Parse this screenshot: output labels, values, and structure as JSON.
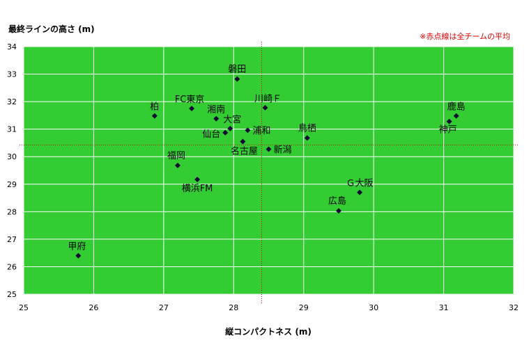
{
  "chart_data": {
    "type": "scatter",
    "xlabel": "縦コンパクトネス (m)",
    "ylabel": "最終ラインの高さ (m)",
    "note": "※赤点線は全チームの平均",
    "xlim": [
      25,
      32
    ],
    "ylim": [
      25,
      34
    ],
    "x_ticks": [
      "25",
      "26",
      "27",
      "28",
      "29",
      "30",
      "31",
      "32"
    ],
    "y_ticks": [
      "25",
      "26",
      "27",
      "28",
      "29",
      "30",
      "31",
      "32",
      "33",
      "34"
    ],
    "grid": true,
    "average": {
      "x": 28.4,
      "y": 30.43
    },
    "points": [
      {
        "label": "磐田",
        "x": 28.05,
        "y": 32.82
      },
      {
        "label": "FC東京",
        "x": 27.4,
        "y": 31.75
      },
      {
        "label": "川崎Ｆ",
        "x": 28.45,
        "y": 31.78
      },
      {
        "label": "柏",
        "x": 26.87,
        "y": 31.48
      },
      {
        "label": "湘南",
        "x": 27.75,
        "y": 31.38
      },
      {
        "label": "大宮",
        "x": 27.95,
        "y": 31.02
      },
      {
        "label": "仙台",
        "x": 27.88,
        "y": 30.87
      },
      {
        "label": "浦和",
        "x": 28.2,
        "y": 30.96
      },
      {
        "label": "鳥栖",
        "x": 29.05,
        "y": 30.68
      },
      {
        "label": "名古屋",
        "x": 28.13,
        "y": 30.55
      },
      {
        "label": "新潟",
        "x": 28.5,
        "y": 30.27
      },
      {
        "label": "鹿島",
        "x": 31.18,
        "y": 31.48
      },
      {
        "label": "神戸",
        "x": 31.08,
        "y": 31.28
      },
      {
        "label": "福岡",
        "x": 27.2,
        "y": 29.68
      },
      {
        "label": "横浜FM",
        "x": 27.48,
        "y": 29.17
      },
      {
        "label": "Ｇ大阪",
        "x": 29.8,
        "y": 28.7
      },
      {
        "label": "広島",
        "x": 29.5,
        "y": 28.03
      },
      {
        "label": "甲府",
        "x": 25.78,
        "y": 26.4
      }
    ]
  },
  "colors": {
    "plot_bg": "#33cc33",
    "grid": "#ffffff",
    "marker": "#0d0d33",
    "avg_line": "#cc0000",
    "note": "#e00000"
  }
}
